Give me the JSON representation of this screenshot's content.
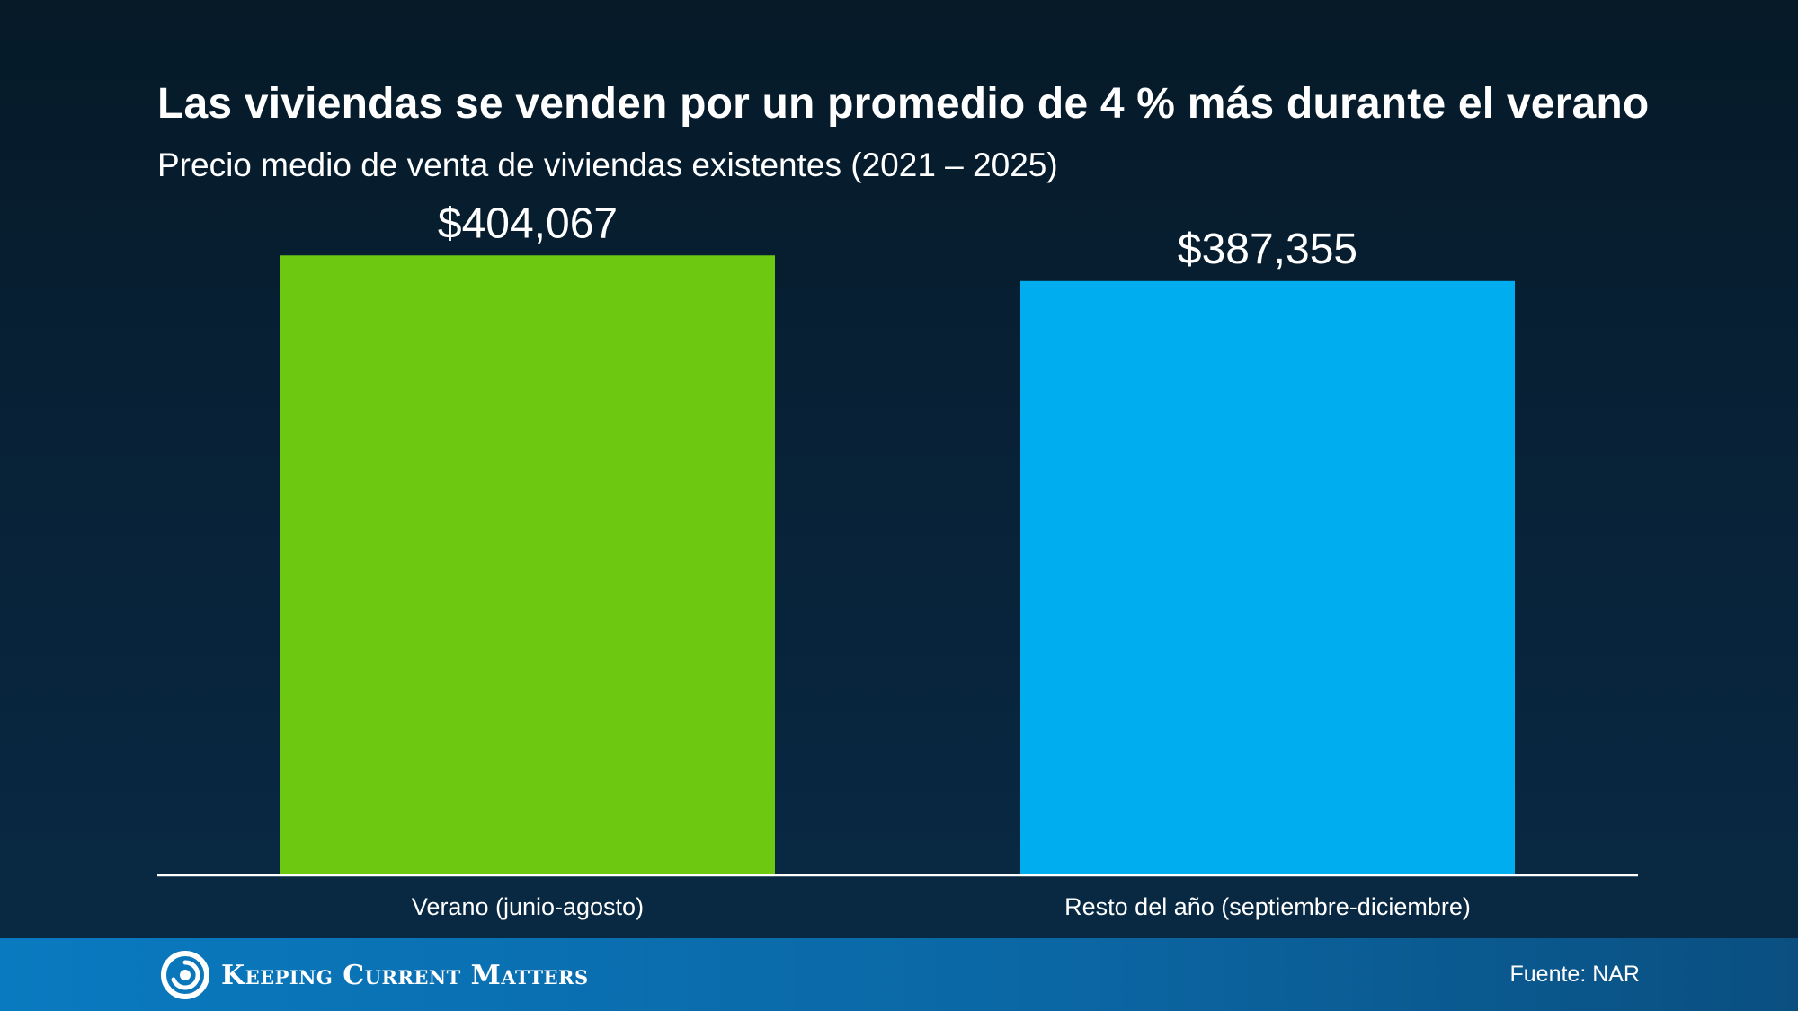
{
  "slide": {
    "title": "Las viviendas se venden por un promedio de 4 % más durante el verano",
    "subtitle": "Precio medio de venta de viviendas existentes (2021 – 2025)"
  },
  "chart_data": {
    "type": "bar",
    "title": "Las viviendas se venden por un promedio de 4 % más durante el verano",
    "subtitle": "Precio medio de venta de viviendas existentes (2021 – 2025)",
    "categories": [
      "Verano (junio-agosto)",
      "Resto del año (septiembre-diciembre)"
    ],
    "values": [
      404067,
      387355
    ],
    "value_labels": [
      "$404,067",
      "$387,355"
    ],
    "colors": [
      "#6dc812",
      "#00adef"
    ],
    "xlabel": "",
    "ylabel": "",
    "ylim": [
      0,
      430000
    ],
    "grid": false,
    "legend": "none"
  },
  "footer": {
    "logo_text": "Keeping Current Matters",
    "logo_icon": "swirl-logo-icon",
    "source": "Fuente: NAR",
    "color": "#0a6fb0"
  }
}
